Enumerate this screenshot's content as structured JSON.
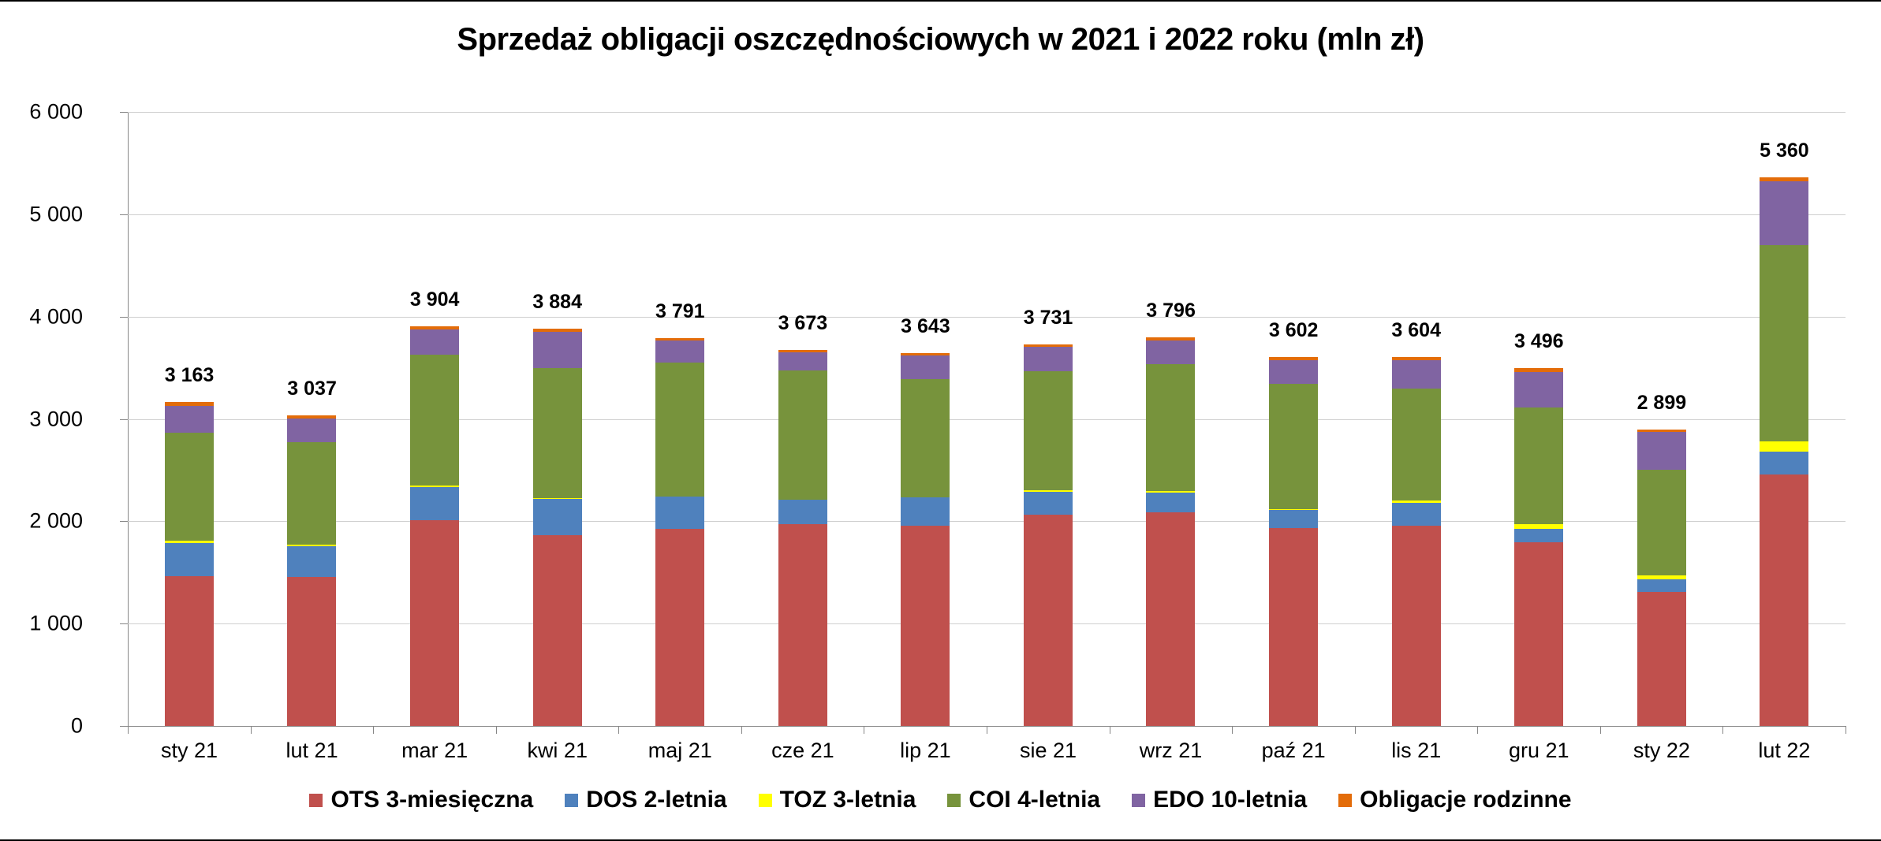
{
  "chart_data": {
    "type": "bar",
    "stacked": true,
    "title": "Sprzedaż obligacji oszczędnościowych w 2021 i 2022 roku (mln zł)",
    "xlabel": "",
    "ylabel": "",
    "ylim": [
      0,
      6000
    ],
    "yticks": [
      0,
      1000,
      2000,
      3000,
      4000,
      5000,
      6000
    ],
    "ytick_labels": [
      "0",
      "1 000",
      "2 000",
      "3 000",
      "4 000",
      "5 000",
      "6 000"
    ],
    "grid": true,
    "legend_position": "bottom",
    "categories": [
      "sty 21",
      "lut 21",
      "mar 21",
      "kwi 21",
      "maj 21",
      "cze 21",
      "lip 21",
      "sie 21",
      "wrz 21",
      "paź 21",
      "lis 21",
      "gru 21",
      "sty 22",
      "lut 22"
    ],
    "series": [
      {
        "name": "OTS 3-miesięczna",
        "color": "#C0504D",
        "values": [
          1462,
          1454,
          2011,
          1866,
          1926,
          1972,
          1957,
          2066,
          2088,
          1934,
          1957,
          1795,
          1310,
          2456
        ]
      },
      {
        "name": "DOS 2-letnia",
        "color": "#4F81BD",
        "values": [
          323,
          300,
          325,
          356,
          313,
          236,
          274,
          222,
          194,
          177,
          222,
          131,
          123,
          226
        ]
      },
      {
        "name": "TOZ 3-letnia",
        "color": "#FFFF00",
        "values": [
          23,
          15,
          14,
          6,
          6,
          6,
          5,
          17,
          14,
          9,
          26,
          46,
          38,
          96
        ]
      },
      {
        "name": "COI 4-letnia",
        "color": "#77933C",
        "values": [
          1061,
          1008,
          1280,
          1271,
          1308,
          1262,
          1154,
          1162,
          1240,
          1225,
          1091,
          1142,
          1035,
          1919
        ]
      },
      {
        "name": "EDO 10-letnia",
        "color": "#8064A2",
        "values": [
          262,
          231,
          245,
          353,
          213,
          176,
          231,
          240,
          230,
          230,
          279,
          348,
          368,
          625
        ]
      },
      {
        "name": "Obligacje rodzinne",
        "color": "#E36C09",
        "values": [
          32,
          29,
          29,
          32,
          25,
          21,
          22,
          24,
          30,
          27,
          29,
          34,
          25,
          38
        ]
      }
    ],
    "totals": [
      3163,
      3037,
      3904,
      3884,
      3791,
      3673,
      3643,
      3731,
      3796,
      3602,
      3604,
      3496,
      2899,
      5360
    ],
    "total_labels": [
      "3 163",
      "3 037",
      "3 904",
      "3 884",
      "3 791",
      "3 673",
      "3 643",
      "3 731",
      "3 796",
      "3 602",
      "3 604",
      "3 496",
      "2 899",
      "5 360"
    ]
  }
}
